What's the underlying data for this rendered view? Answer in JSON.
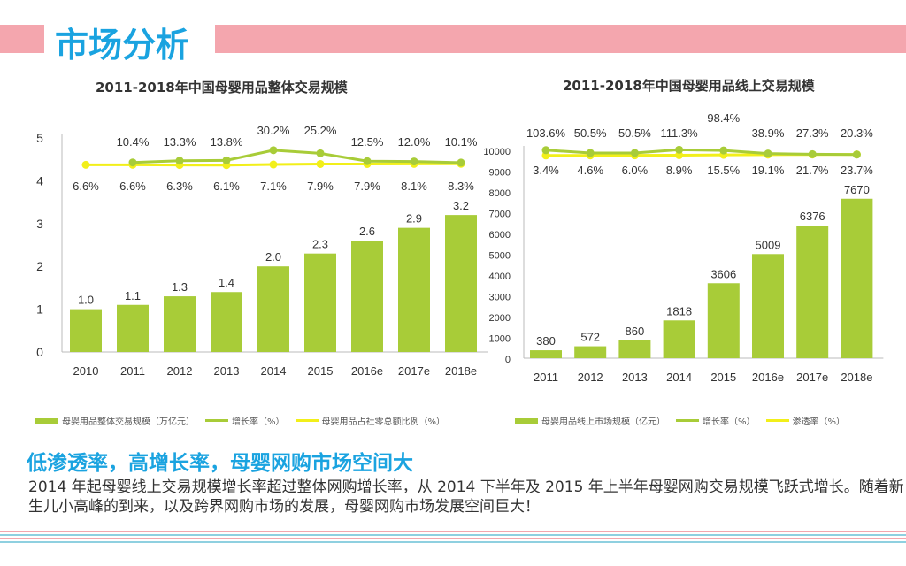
{
  "header": {
    "title": "市场分析",
    "accent": "#f4a6ae",
    "title_color": "#1aa3e0"
  },
  "chart_data": [
    {
      "type": "bar",
      "title": "2011-2018年中国母婴用品整体交易规模",
      "categories": [
        "2010",
        "2011",
        "2012",
        "2013",
        "2014",
        "2015",
        "2016e",
        "2017e",
        "2018e"
      ],
      "ylim": [
        0,
        5
      ],
      "yticks": [
        "0",
        "1",
        "2",
        "3",
        "4",
        "5"
      ],
      "series": [
        {
          "name": "母婴用品整体交易规模（万亿元）",
          "kind": "bar",
          "color": "#a8cc38",
          "values": [
            1.0,
            1.1,
            1.3,
            1.4,
            2.0,
            2.3,
            2.6,
            2.9,
            3.2
          ],
          "labels": [
            "1.0",
            "1.1",
            "1.3",
            "1.4",
            "2.0",
            "2.3",
            "2.6",
            "2.9",
            "3.2"
          ]
        },
        {
          "name": "增长率（%）",
          "kind": "line",
          "color": "#a8cc38",
          "values": [
            null,
            10.4,
            13.3,
            13.8,
            30.2,
            25.2,
            12.5,
            12.0,
            10.1
          ],
          "labels": [
            "",
            "10.4%",
            "13.3%",
            "13.8%",
            "30.2%",
            "25.2%",
            "12.5%",
            "12.0%",
            "10.1%"
          ]
        },
        {
          "name": "母婴用品占社零总额比例（%）",
          "kind": "line",
          "color": "#f2ef1a",
          "values": [
            6.6,
            6.6,
            6.3,
            6.1,
            7.1,
            7.9,
            7.9,
            8.1,
            8.3
          ],
          "labels": [
            "6.6%",
            "6.6%",
            "6.3%",
            "6.1%",
            "7.1%",
            "7.9%",
            "7.9%",
            "8.1%",
            "8.3%"
          ]
        }
      ]
    },
    {
      "type": "bar",
      "title": "2011-2018年中国母婴用品线上交易规模",
      "categories": [
        "2011",
        "2012",
        "2013",
        "2014",
        "2015",
        "2016e",
        "2017e",
        "2018e"
      ],
      "ylim": [
        0,
        10000
      ],
      "yticks": [
        "0",
        "1000",
        "2000",
        "3000",
        "4000",
        "5000",
        "6000",
        "7000",
        "8000",
        "9000",
        "10000"
      ],
      "series": [
        {
          "name": "母婴用品线上市场规模（亿元）",
          "kind": "bar",
          "color": "#a8cc38",
          "values": [
            380,
            572,
            860,
            1818,
            3606,
            5009,
            6376,
            7670
          ],
          "labels": [
            "380",
            "572",
            "860",
            "1818",
            "3606",
            "5009",
            "6376",
            "7670"
          ]
        },
        {
          "name": "增长率（%）",
          "kind": "line",
          "color": "#a8cc38",
          "values": [
            103.6,
            50.5,
            50.5,
            111.3,
            98.4,
            38.9,
            27.3,
            20.3
          ],
          "labels": [
            "103.6%",
            "50.5%",
            "50.5%",
            "111.3%",
            "98.4%",
            "38.9%",
            "27.3%",
            "20.3%"
          ]
        },
        {
          "name": "渗透率（%）",
          "kind": "line",
          "color": "#f2ef1a",
          "values": [
            3.4,
            4.6,
            6.0,
            8.9,
            15.5,
            19.1,
            21.7,
            23.7
          ],
          "labels": [
            "3.4%",
            "4.6%",
            "6.0%",
            "8.9%",
            "15.5%",
            "19.1%",
            "21.7%",
            "23.7%"
          ]
        }
      ]
    }
  ],
  "summary": {
    "headline": "低渗透率，高增长率，母婴网购市场空间大",
    "body": "2014 年起母婴线上交易规模增长率超过整体网购增长率，从 2014 下半年及 2015 年上半年母婴网购交易规模飞跃式增长。随着新生儿小高峰的到来，以及跨界网购市场的发展，母婴网购市场发展空间巨大！"
  }
}
